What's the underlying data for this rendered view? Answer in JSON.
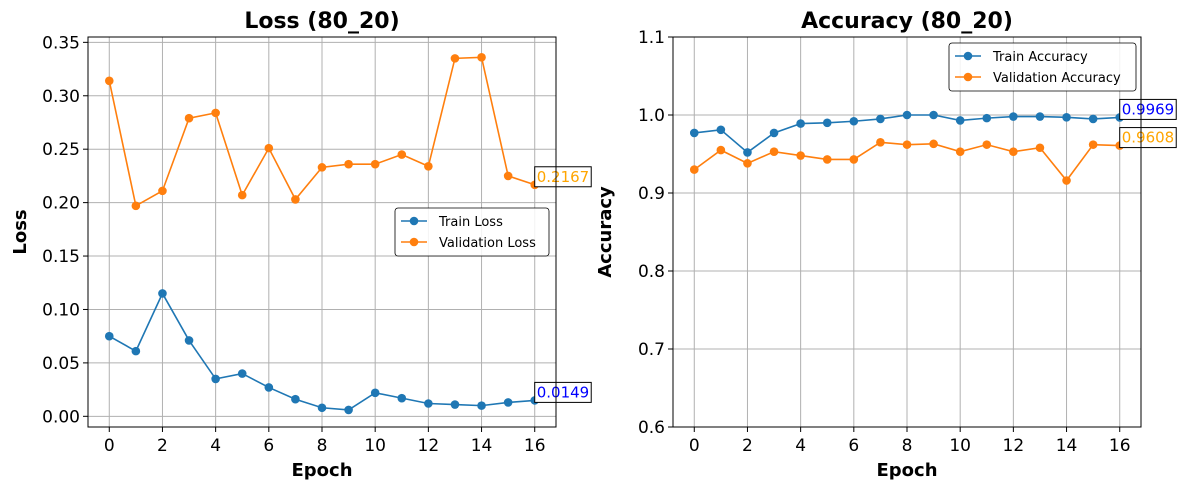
{
  "chart_data": [
    {
      "type": "line",
      "title": "Loss (80_20)",
      "xlabel": "Epoch",
      "ylabel": "Loss",
      "xlim": [
        -0.8,
        16.8
      ],
      "ylim": [
        -0.01,
        0.355
      ],
      "xticks": [
        0,
        2,
        4,
        6,
        8,
        10,
        12,
        14,
        16
      ],
      "yticks": [
        0.0,
        0.05,
        0.1,
        0.15,
        0.2,
        0.25,
        0.3,
        0.35
      ],
      "ytick_labels": [
        "0.00",
        "0.05",
        "0.10",
        "0.15",
        "0.20",
        "0.25",
        "0.30",
        "0.35"
      ],
      "grid": true,
      "legend_position": "center-right",
      "x": [
        0,
        1,
        2,
        3,
        4,
        5,
        6,
        7,
        8,
        9,
        10,
        11,
        12,
        13,
        14,
        15,
        16
      ],
      "series": [
        {
          "name": "Train Loss",
          "color": "#1f77b4",
          "values": [
            0.075,
            0.061,
            0.115,
            0.071,
            0.035,
            0.04,
            0.027,
            0.016,
            0.008,
            0.006,
            0.022,
            0.017,
            0.012,
            0.011,
            0.01,
            0.013,
            0.0149
          ],
          "annotation": "0.0149",
          "annotation_color": "#0000ff"
        },
        {
          "name": "Validation Loss",
          "color": "#ff7f0e",
          "values": [
            0.314,
            0.197,
            0.211,
            0.279,
            0.284,
            0.207,
            0.251,
            0.203,
            0.233,
            0.236,
            0.236,
            0.245,
            0.234,
            0.335,
            0.336,
            0.225,
            0.2167
          ],
          "annotation": "0.2167",
          "annotation_color": "#ffa500"
        }
      ]
    },
    {
      "type": "line",
      "title": "Accuracy (80_20)",
      "xlabel": "Epoch",
      "ylabel": "Accuracy",
      "xlim": [
        -0.8,
        16.8
      ],
      "ylim": [
        0.6,
        1.1
      ],
      "xticks": [
        0,
        2,
        4,
        6,
        8,
        10,
        12,
        14,
        16
      ],
      "yticks": [
        0.6,
        0.7,
        0.8,
        0.9,
        1.0,
        1.1
      ],
      "ytick_labels": [
        "0.6",
        "0.7",
        "0.8",
        "0.9",
        "1.0",
        "1.1"
      ],
      "grid": true,
      "legend_position": "top-right",
      "x": [
        0,
        1,
        2,
        3,
        4,
        5,
        6,
        7,
        8,
        9,
        10,
        11,
        12,
        13,
        14,
        15,
        16
      ],
      "series": [
        {
          "name": "Train Accuracy",
          "color": "#1f77b4",
          "values": [
            0.977,
            0.981,
            0.952,
            0.977,
            0.989,
            0.99,
            0.992,
            0.995,
            1.0,
            1.0,
            0.993,
            0.996,
            0.998,
            0.998,
            0.997,
            0.995,
            0.9969
          ],
          "annotation": "0.9969",
          "annotation_color": "#0000ff"
        },
        {
          "name": "Validation Accuracy",
          "color": "#ff7f0e",
          "values": [
            0.93,
            0.955,
            0.938,
            0.953,
            0.948,
            0.943,
            0.943,
            0.965,
            0.962,
            0.963,
            0.953,
            0.962,
            0.953,
            0.958,
            0.916,
            0.962,
            0.9608
          ],
          "annotation": "0.9608",
          "annotation_color": "#ffa500"
        }
      ]
    }
  ]
}
